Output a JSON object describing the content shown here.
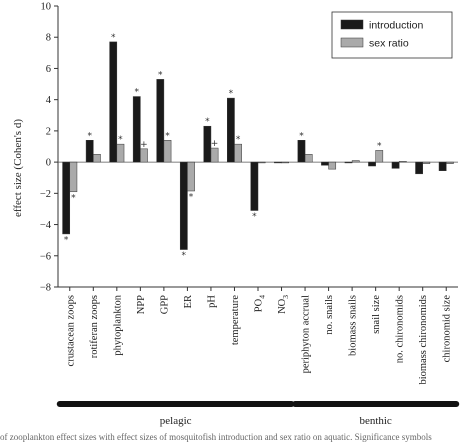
{
  "chart_data": {
    "type": "bar",
    "ylabel": "effect size (Cohen's d)",
    "ylim": [
      -8,
      10
    ],
    "yticks": [
      -8,
      -6,
      -4,
      -2,
      0,
      2,
      4,
      6,
      8,
      10
    ],
    "categories": [
      "crustacean zoops",
      "rotiferan zoops",
      "phytoplankton",
      "NPP",
      "GPP",
      "ER",
      "pH",
      "temperature",
      "PO4",
      "NO3",
      "periphyton accrual",
      "no. snails",
      "biomass snails",
      "snail size",
      "no. chironomids",
      "biomass chironomids",
      "chironomid size"
    ],
    "series": [
      {
        "name": "introduction",
        "color": "#1a1a1a",
        "values": [
          -4.6,
          1.4,
          7.7,
          4.2,
          5.3,
          -5.6,
          2.3,
          4.1,
          -3.1,
          0.0,
          1.4,
          -0.2,
          0.0,
          -0.25,
          -0.4,
          -0.75,
          -0.55
        ],
        "marks": [
          "*",
          "*",
          "*",
          "*",
          "*",
          "*",
          "*",
          "*",
          "*",
          "",
          "*",
          "",
          "",
          "",
          "",
          "",
          ""
        ]
      },
      {
        "name": "sex ratio",
        "color": "#aaaaaa",
        "values": [
          -1.9,
          0.5,
          1.15,
          0.85,
          1.4,
          -1.85,
          0.9,
          1.15,
          -0.05,
          -0.05,
          0.5,
          -0.45,
          0.1,
          0.75,
          0.05,
          -0.1,
          -0.1
        ],
        "marks": [
          "*",
          "",
          "*",
          "+",
          "*",
          "*",
          "+",
          "*",
          "",
          "",
          "",
          "",
          "",
          "*",
          "",
          "",
          ""
        ]
      }
    ],
    "groups": [
      {
        "label": "pelagic",
        "from": 0,
        "to": 9
      },
      {
        "label": "benthic",
        "from": 10,
        "to": 16
      }
    ],
    "legend_position": "top-right",
    "grid": false
  },
  "caption": "of zooplankton effect sizes with effect sizes of mosquitofish introduction and sex ratio on aquatic. Significance symbols"
}
